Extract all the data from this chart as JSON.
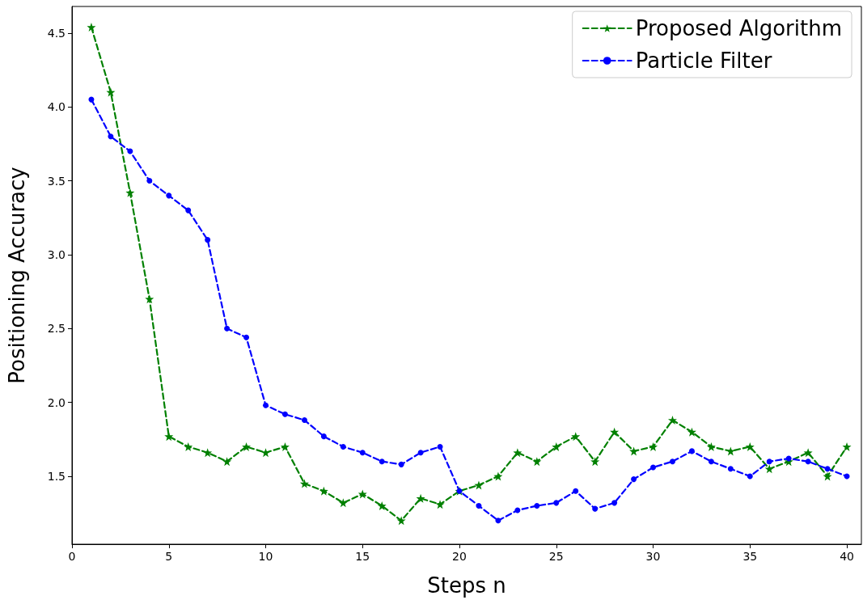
{
  "chart_data": {
    "type": "line",
    "xlabel": "Steps n",
    "ylabel": "Positioning Accuracy",
    "x": [
      1,
      2,
      3,
      4,
      5,
      6,
      7,
      8,
      9,
      10,
      11,
      12,
      13,
      14,
      15,
      16,
      17,
      18,
      19,
      20,
      21,
      22,
      23,
      24,
      25,
      26,
      27,
      28,
      29,
      30,
      31,
      32,
      33,
      34,
      35,
      36,
      37,
      38,
      39,
      40
    ],
    "series": [
      {
        "name": "Proposed Algorithm",
        "color": "#008000",
        "marker": "star",
        "values": [
          4.54,
          4.1,
          3.42,
          2.7,
          1.77,
          1.7,
          1.66,
          1.6,
          1.7,
          1.66,
          1.7,
          1.45,
          1.4,
          1.32,
          1.38,
          1.3,
          1.2,
          1.35,
          1.31,
          1.4,
          1.44,
          1.5,
          1.66,
          1.6,
          1.7,
          1.77,
          1.6,
          1.8,
          1.67,
          1.7,
          1.88,
          1.8,
          1.7,
          1.67,
          1.7,
          1.55,
          1.6,
          1.66,
          1.5,
          1.7
        ]
      },
      {
        "name": "Particle Filter",
        "color": "#0000ff",
        "marker": "circle",
        "values": [
          4.05,
          3.8,
          3.7,
          3.5,
          3.4,
          3.3,
          3.1,
          2.5,
          2.44,
          1.98,
          1.92,
          1.88,
          1.77,
          1.7,
          1.66,
          1.6,
          1.58,
          1.66,
          1.7,
          1.4,
          1.3,
          1.2,
          1.27,
          1.3,
          1.32,
          1.4,
          1.28,
          1.32,
          1.48,
          1.56,
          1.6,
          1.67,
          1.6,
          1.55,
          1.5,
          1.6,
          1.62,
          1.6,
          1.55,
          1.5
        ]
      }
    ],
    "xlim": [
      0,
      40.75
    ],
    "ylim": [
      1.04,
      4.68
    ],
    "xticks": [
      0,
      5,
      10,
      15,
      20,
      25,
      30,
      35,
      40
    ],
    "yticks": [
      {
        "value": 1.5,
        "label": "1.5"
      },
      {
        "value": 2,
        "label": "2.0"
      },
      {
        "value": 2.5,
        "label": "2.5"
      },
      {
        "value": 3,
        "label": "3.0"
      },
      {
        "value": 3.5,
        "label": "3.5"
      },
      {
        "value": 4,
        "label": "4.0"
      },
      {
        "value": 4.5,
        "label": "4.5"
      }
    ],
    "grid": false,
    "legend": "top right",
    "line_style": "dashed"
  }
}
